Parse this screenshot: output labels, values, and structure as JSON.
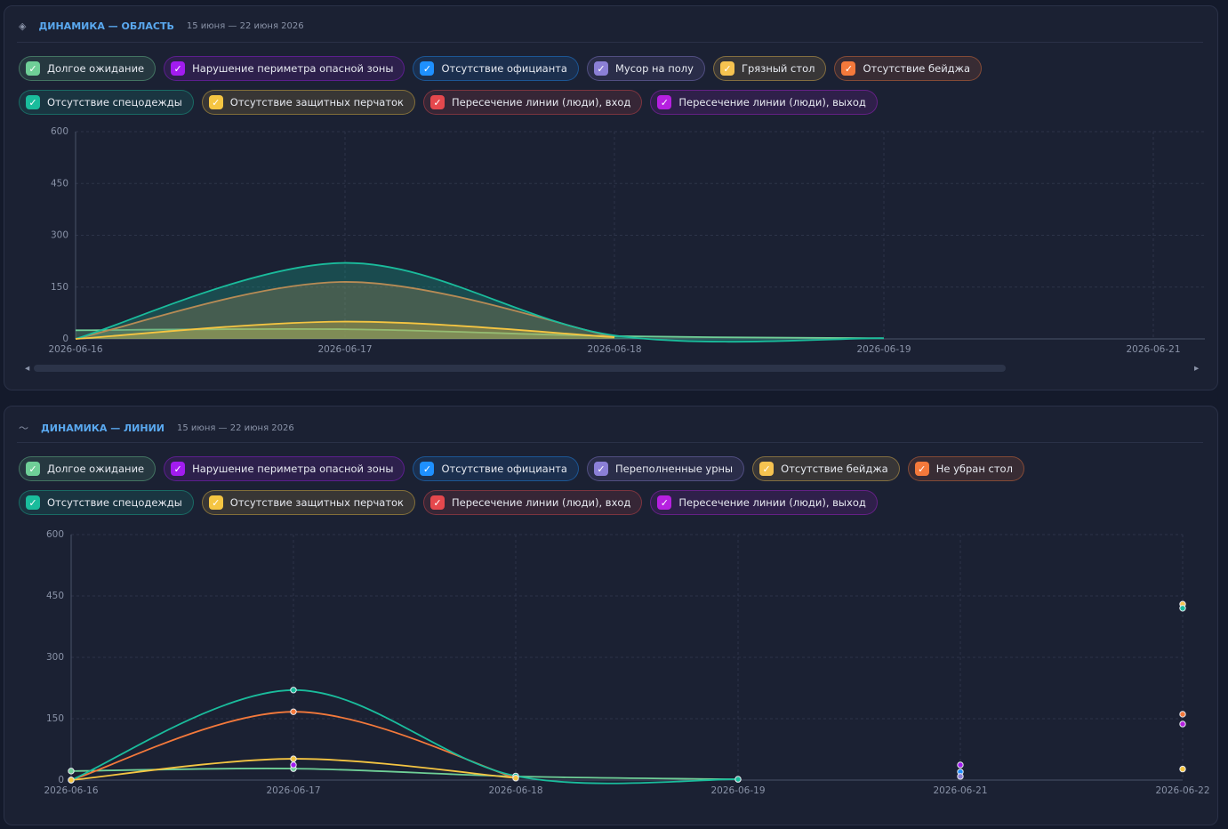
{
  "chart_data": [
    {
      "type": "area",
      "title": "ДИНАМИКА — ОБЛАСТЬ",
      "subtitle": "15 июня — 22 июня 2026",
      "categories": [
        "2026-06-16",
        "2026-06-17",
        "2026-06-18",
        "2026-06-19",
        "2026-06-21"
      ],
      "ylim": [
        0,
        600
      ],
      "yticks": [
        0,
        150,
        300,
        450,
        600
      ],
      "grid": true,
      "series": [
        {
          "name": "Долгое ожидание",
          "color": "#6fcf97",
          "values": [
            25,
            28,
            8,
            2,
            null
          ]
        },
        {
          "name": "Нарушение периметра опасной зоны",
          "color": "#a21cf0",
          "values": [
            null,
            null,
            null,
            null,
            null
          ]
        },
        {
          "name": "Отсутствие официанта",
          "color": "#1e90ff",
          "values": [
            null,
            null,
            null,
            null,
            null
          ]
        },
        {
          "name": "Мусор на полу",
          "color": "#8b7fd6",
          "values": [
            null,
            null,
            null,
            null,
            null
          ]
        },
        {
          "name": "Грязный стол",
          "color": "#f6c350",
          "values": [
            null,
            null,
            null,
            null,
            null
          ]
        },
        {
          "name": "Отсутствие бейджа",
          "color": "#f4793b",
          "values": [
            0,
            165,
            5,
            null,
            null
          ]
        },
        {
          "name": "Отсутствие спецодежды",
          "color": "#1abc9c",
          "values": [
            0,
            220,
            10,
            2,
            null
          ]
        },
        {
          "name": "Отсутствие защитных перчаток",
          "color": "#f5c542",
          "values": [
            0,
            50,
            5,
            null,
            null
          ]
        },
        {
          "name": "Пересечение линии (люди), вход",
          "color": "#e5484d",
          "values": [
            null,
            null,
            null,
            null,
            null
          ]
        },
        {
          "name": "Пересечение линии (люди), выход",
          "color": "#b620e0",
          "values": [
            null,
            null,
            null,
            null,
            null
          ]
        }
      ]
    },
    {
      "type": "line",
      "title": "ДИНАМИКА — ЛИНИИ",
      "subtitle": "15 июня — 22 июня 2026",
      "categories": [
        "2026-06-16",
        "2026-06-17",
        "2026-06-18",
        "2026-06-19",
        "2026-06-21",
        "2026-06-22"
      ],
      "ylim": [
        0,
        600
      ],
      "yticks": [
        0,
        150,
        300,
        450,
        600
      ],
      "grid": true,
      "series": [
        {
          "name": "Долгое ожидание",
          "color": "#6fcf97",
          "values": [
            22,
            28,
            9,
            2,
            null,
            null
          ]
        },
        {
          "name": "Нарушение периметра опасной зоны",
          "color": "#a21cf0",
          "values": [
            null,
            37,
            null,
            null,
            37,
            null
          ]
        },
        {
          "name": "Отсутствие официанта",
          "color": "#1e90ff",
          "values": [
            null,
            null,
            null,
            null,
            20,
            null
          ]
        },
        {
          "name": "Переполненные урны",
          "color": "#8b7fd6",
          "values": [
            null,
            null,
            null,
            null,
            9,
            null
          ]
        },
        {
          "name": "Отсутствие бейджа",
          "color": "#f6c350",
          "values": [
            null,
            null,
            null,
            null,
            null,
            430
          ]
        },
        {
          "name": "Не убран стол",
          "color": "#f4793b",
          "values": [
            0,
            167,
            5,
            null,
            null,
            161
          ]
        },
        {
          "name": "Отсутствие спецодежды",
          "color": "#1abc9c",
          "values": [
            0,
            220,
            10,
            2,
            null,
            420
          ]
        },
        {
          "name": "Отсутствие защитных перчаток",
          "color": "#f5c542",
          "values": [
            0,
            52,
            5,
            null,
            null,
            27
          ]
        },
        {
          "name": "Пересечение линии (люди), вход",
          "color": "#e5484d",
          "values": [
            null,
            null,
            null,
            null,
            null,
            null
          ]
        },
        {
          "name": "Пересечение линии (люди), выход",
          "color": "#b620e0",
          "values": [
            null,
            null,
            null,
            null,
            null,
            137
          ]
        }
      ]
    }
  ]
}
